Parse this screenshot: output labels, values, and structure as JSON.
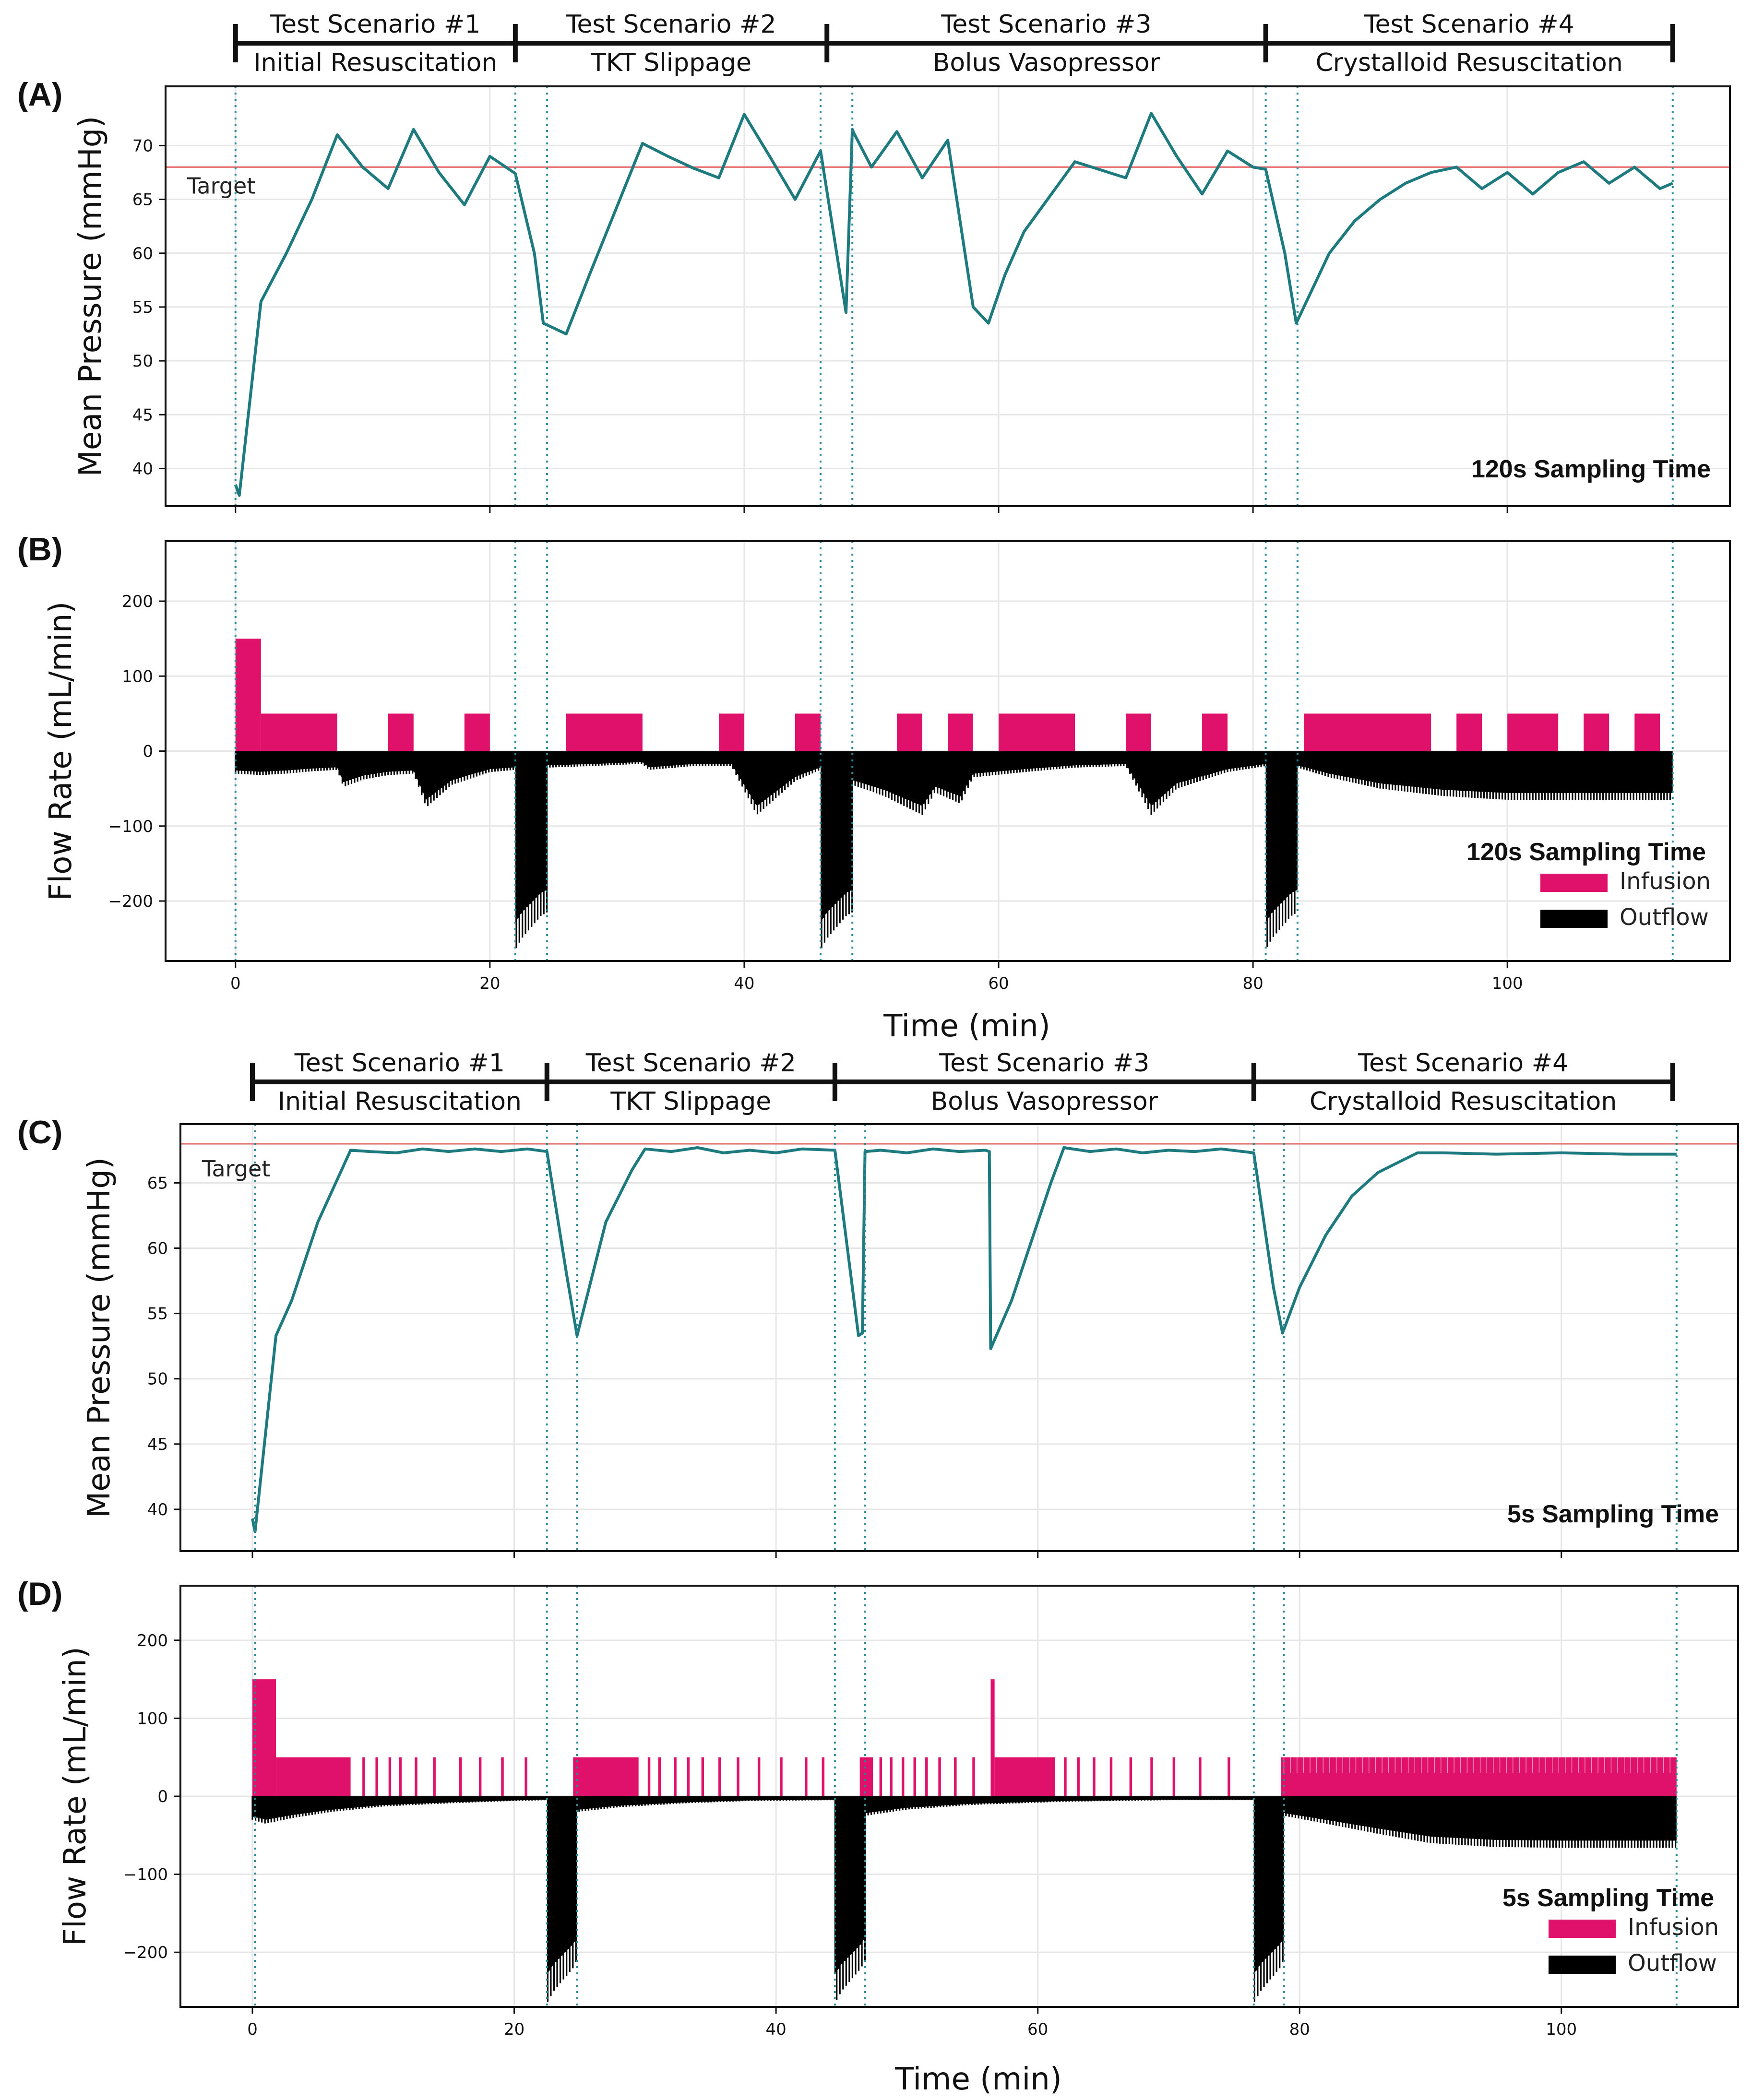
{
  "colors": {
    "pressure": "#1d7a7f",
    "target": "#e8797a",
    "infusion": "#e0116b",
    "outflow": "#000000",
    "event_line": "#2a8a9a",
    "grid": "#e6e6e6"
  },
  "scenario_headers": [
    {
      "bounds": [
        0,
        22,
        46.5,
        81,
        113
      ],
      "scenarios": [
        {
          "title": "Test Scenario #1",
          "subtitle": "Initial Resuscitation"
        },
        {
          "title": "Test Scenario #2",
          "subtitle": "TKT Slippage"
        },
        {
          "title": "Test Scenario #3",
          "subtitle": "Bolus Vasopressor"
        },
        {
          "title": "Test Scenario #4",
          "subtitle": "Crystalloid Resuscitation"
        }
      ]
    },
    {
      "bounds": [
        0,
        22.5,
        44.5,
        76.5,
        108.5
      ],
      "scenarios": [
        {
          "title": "Test Scenario #1",
          "subtitle": "Initial Resuscitation"
        },
        {
          "title": "Test Scenario #2",
          "subtitle": "TKT Slippage"
        },
        {
          "title": "Test Scenario #3",
          "subtitle": "Bolus Vasopressor"
        },
        {
          "title": "Test Scenario #4",
          "subtitle": "Crystalloid Resuscitation"
        }
      ]
    }
  ],
  "chart_data": [
    {
      "panel": "(A)",
      "type": "line",
      "xlabel": "",
      "ylabel": "Mean Pressure (mmHg)",
      "xlim": [
        -5.5,
        117.5
      ],
      "ylim": [
        36.5,
        75.5
      ],
      "yticks": [
        40,
        45,
        50,
        55,
        60,
        65,
        70
      ],
      "xticks": [
        0,
        20,
        40,
        60,
        80,
        100
      ],
      "show_xticklabels": false,
      "grid": true,
      "annotation": "120s Sampling Time",
      "target": {
        "value": 68,
        "label": "Target"
      },
      "event_lines": [
        0,
        22,
        24.5,
        46,
        48.5,
        81,
        83.5,
        113
      ],
      "series": [
        {
          "x": [
            0,
            0.3,
            2,
            4,
            6,
            8,
            10,
            12,
            14,
            16,
            18,
            20,
            22,
            23.5,
            24.2,
            26,
            28,
            32,
            34,
            36,
            38,
            40,
            42,
            44,
            46,
            48,
            48.5,
            48.6,
            50,
            52,
            54,
            56,
            58,
            59.2,
            60.5,
            62,
            66,
            70,
            72,
            74,
            76,
            78,
            80,
            81,
            82.5,
            83.4,
            83.8,
            86,
            88,
            90,
            92,
            94,
            96,
            98,
            100,
            102,
            104,
            106,
            108,
            110,
            112,
            113
          ],
          "values": [
            38.5,
            37.5,
            55.5,
            60,
            65,
            71,
            68,
            66,
            71.5,
            67.5,
            64.5,
            69,
            67.4,
            60,
            53.5,
            52.5,
            58.5,
            70.2,
            69,
            67.9,
            67,
            72.9,
            69,
            65,
            69.5,
            54.5,
            71.5,
            71.2,
            68,
            71.3,
            67,
            70.5,
            55,
            53.5,
            58,
            62,
            68.5,
            67,
            73,
            69,
            65.5,
            69.5,
            68,
            67.8,
            60,
            53.5,
            54.5,
            60,
            63,
            65,
            66.5,
            67.5,
            68,
            66,
            67.5,
            65.5,
            67.5,
            68.5,
            66.5,
            68,
            66,
            66.5
          ]
        }
      ]
    },
    {
      "panel": "(B)",
      "type": "bar",
      "xlabel": "Time (min)",
      "ylabel": "Flow Rate (mL/min)",
      "xlim": [
        -5.5,
        117.5
      ],
      "ylim": [
        -280,
        280
      ],
      "yticks": [
        -200,
        -100,
        0,
        100,
        200
      ],
      "xticks": [
        0,
        20,
        40,
        60,
        80,
        100
      ],
      "show_xticklabels": true,
      "grid": true,
      "annotation": "120s Sampling Time",
      "event_lines": [
        0,
        22,
        24.5,
        46,
        48.5,
        81,
        83.5,
        113
      ],
      "legend": [
        {
          "label": "Infusion",
          "color": "#e0116b"
        },
        {
          "label": "Outflow",
          "color": "#000000"
        }
      ],
      "infusion_segments": [
        {
          "start": 0,
          "end": 2,
          "value": 150
        },
        {
          "start": 2,
          "end": 8,
          "value": 50
        },
        {
          "start": 12,
          "end": 14,
          "value": 50
        },
        {
          "start": 18,
          "end": 20,
          "value": 50
        },
        {
          "start": 26,
          "end": 32,
          "value": 50
        },
        {
          "start": 38,
          "end": 40,
          "value": 50
        },
        {
          "start": 44,
          "end": 46,
          "value": 50
        },
        {
          "start": 52,
          "end": 54,
          "value": 50
        },
        {
          "start": 56,
          "end": 58,
          "value": 50
        },
        {
          "start": 60,
          "end": 66,
          "value": 50
        },
        {
          "start": 70,
          "end": 72,
          "value": 50
        },
        {
          "start": 76,
          "end": 78,
          "value": 50
        },
        {
          "start": 84,
          "end": 94,
          "value": 50
        },
        {
          "start": 96,
          "end": 98,
          "value": 50
        },
        {
          "start": 100,
          "end": 104,
          "value": 50
        },
        {
          "start": 106,
          "end": 108,
          "value": 50
        },
        {
          "start": 110,
          "end": 112,
          "value": 50
        }
      ],
      "outflow_envelope": {
        "x": [
          0,
          2,
          4,
          6,
          8,
          8.5,
          10,
          12,
          14,
          15,
          17,
          20,
          22,
          22.01,
          22.5,
          24,
          24.5,
          24.51,
          28,
          32,
          32.5,
          36,
          39,
          41,
          44,
          46,
          46.01,
          46.5,
          48,
          48.5,
          48.51,
          51,
          54,
          55,
          57,
          58,
          62,
          66,
          70,
          72,
          74,
          78,
          81,
          81.01,
          81.5,
          83,
          83.5,
          83.51,
          86,
          90,
          95,
          100,
          105,
          110,
          113
        ],
        "values": [
          -30,
          -32,
          -30,
          -27,
          -25,
          -48,
          -38,
          -32,
          -30,
          -75,
          -45,
          -28,
          -25,
          -265,
          -250,
          -220,
          -215,
          -22,
          -20,
          -17,
          -25,
          -20,
          -20,
          -85,
          -40,
          -25,
          -265,
          -250,
          -220,
          -215,
          -45,
          -60,
          -85,
          -55,
          -70,
          -35,
          -28,
          -22,
          -20,
          -85,
          -50,
          -28,
          -20,
          -265,
          -250,
          -220,
          -215,
          -22,
          -35,
          -50,
          -60,
          -65,
          -65,
          -65,
          -65
        ]
      }
    },
    {
      "panel": "(C)",
      "type": "line",
      "xlabel": "",
      "ylabel": "Mean Pressure (mmHg)",
      "xlim": [
        -5.5,
        113.5
      ],
      "ylim": [
        36.8,
        69.5
      ],
      "yticks": [
        40,
        45,
        50,
        55,
        60,
        65
      ],
      "xticks": [
        0,
        20,
        40,
        60,
        80,
        100
      ],
      "show_xticklabels": false,
      "grid": true,
      "annotation": "5s Sampling Time",
      "target": {
        "value": 68,
        "label": "Target"
      },
      "event_lines": [
        0.2,
        22.5,
        24.8,
        44.5,
        46.8,
        76.5,
        78.8,
        108.8
      ],
      "series": [
        {
          "x": [
            0,
            0.2,
            1.8,
            3,
            5,
            7.5,
            9,
            11,
            13,
            15,
            17,
            19,
            21,
            22.5,
            24,
            24.8,
            27,
            29,
            30,
            32,
            34,
            36,
            38,
            40,
            42,
            44.5,
            46.3,
            46.6,
            46.8,
            48,
            50,
            52,
            54,
            56,
            56.3,
            56.4,
            58,
            61,
            62,
            64,
            66,
            68,
            70,
            72,
            74,
            76.5,
            78,
            78.7,
            80,
            82,
            84,
            86,
            88,
            89,
            91,
            95,
            100,
            105,
            108.8
          ],
          "values": [
            39.3,
            38.3,
            53.3,
            56,
            62,
            67.5,
            67.4,
            67.3,
            67.6,
            67.4,
            67.6,
            67.4,
            67.6,
            67.4,
            58,
            53.3,
            62,
            66,
            67.6,
            67.4,
            67.7,
            67.3,
            67.5,
            67.3,
            67.6,
            67.5,
            53.3,
            53.5,
            67.4,
            67.5,
            67.3,
            67.6,
            67.4,
            67.5,
            67.4,
            52.3,
            56,
            65,
            67.7,
            67.4,
            67.6,
            67.3,
            67.5,
            67.4,
            67.6,
            67.3,
            57,
            53.5,
            57,
            61,
            64,
            65.8,
            66.8,
            67.3,
            67.3,
            67.2,
            67.3,
            67.2,
            67.2
          ]
        }
      ]
    },
    {
      "panel": "(D)",
      "type": "bar",
      "xlabel": "Time (min)",
      "ylabel": "Flow Rate (mL/min)",
      "xlim": [
        -5.5,
        113.5
      ],
      "ylim": [
        -270,
        270
      ],
      "yticks": [
        -200,
        -100,
        0,
        100,
        200
      ],
      "xticks": [
        0,
        20,
        40,
        60,
        80,
        100
      ],
      "show_xticklabels": true,
      "grid": true,
      "annotation": "5s Sampling Time",
      "event_lines": [
        0.2,
        22.5,
        24.8,
        44.5,
        46.8,
        76.5,
        78.8,
        108.8
      ],
      "legend": [
        {
          "label": "Infusion",
          "color": "#e0116b"
        },
        {
          "label": "Outflow",
          "color": "#000000"
        }
      ],
      "infusion_segments": [
        {
          "start": 0,
          "end": 1.8,
          "value": 150
        },
        {
          "start": 1.8,
          "end": 7.5,
          "value": 50
        },
        {
          "start": 8.4,
          "end": 8.6,
          "value": 50
        },
        {
          "start": 9.4,
          "end": 9.6,
          "value": 50
        },
        {
          "start": 10.4,
          "end": 10.6,
          "value": 50
        },
        {
          "start": 11.2,
          "end": 11.4,
          "value": 50
        },
        {
          "start": 12.4,
          "end": 12.6,
          "value": 50
        },
        {
          "start": 13.8,
          "end": 14,
          "value": 50
        },
        {
          "start": 15.8,
          "end": 16,
          "value": 50
        },
        {
          "start": 17.3,
          "end": 17.5,
          "value": 50
        },
        {
          "start": 19,
          "end": 19.2,
          "value": 50
        },
        {
          "start": 20.8,
          "end": 21,
          "value": 50
        },
        {
          "start": 24.5,
          "end": 29.5,
          "value": 50
        },
        {
          "start": 30.2,
          "end": 30.4,
          "value": 50
        },
        {
          "start": 31,
          "end": 31.2,
          "value": 50
        },
        {
          "start": 32.2,
          "end": 32.4,
          "value": 50
        },
        {
          "start": 33.2,
          "end": 33.4,
          "value": 50
        },
        {
          "start": 34.3,
          "end": 34.5,
          "value": 50
        },
        {
          "start": 35.6,
          "end": 35.8,
          "value": 50
        },
        {
          "start": 37,
          "end": 37.2,
          "value": 50
        },
        {
          "start": 38.6,
          "end": 38.8,
          "value": 50
        },
        {
          "start": 40.3,
          "end": 40.5,
          "value": 50
        },
        {
          "start": 42.2,
          "end": 42.4,
          "value": 50
        },
        {
          "start": 43.5,
          "end": 43.7,
          "value": 50
        },
        {
          "start": 46.4,
          "end": 47.4,
          "value": 50
        },
        {
          "start": 47.9,
          "end": 48.1,
          "value": 50
        },
        {
          "start": 48.7,
          "end": 48.9,
          "value": 50
        },
        {
          "start": 49.6,
          "end": 49.8,
          "value": 50
        },
        {
          "start": 50.5,
          "end": 50.7,
          "value": 50
        },
        {
          "start": 51.4,
          "end": 51.6,
          "value": 50
        },
        {
          "start": 52.4,
          "end": 52.6,
          "value": 50
        },
        {
          "start": 53.6,
          "end": 53.8,
          "value": 50
        },
        {
          "start": 55,
          "end": 55.2,
          "value": 50
        },
        {
          "start": 56.4,
          "end": 56.7,
          "value": 150
        },
        {
          "start": 56.7,
          "end": 61.3,
          "value": 50
        },
        {
          "start": 62,
          "end": 62.2,
          "value": 50
        },
        {
          "start": 63,
          "end": 63.2,
          "value": 50
        },
        {
          "start": 64.2,
          "end": 64.4,
          "value": 50
        },
        {
          "start": 65.5,
          "end": 65.7,
          "value": 50
        },
        {
          "start": 67,
          "end": 67.2,
          "value": 50
        },
        {
          "start": 68.6,
          "end": 68.8,
          "value": 50
        },
        {
          "start": 70.3,
          "end": 70.5,
          "value": 50
        },
        {
          "start": 72.3,
          "end": 72.5,
          "value": 50
        },
        {
          "start": 74.5,
          "end": 74.7,
          "value": 50
        },
        {
          "start": 78.6,
          "end": 108.8,
          "value": 50
        }
      ],
      "outflow_envelope": {
        "x": [
          0,
          1,
          3,
          6,
          10,
          15,
          20,
          22.5,
          22.51,
          23,
          24.5,
          24.8,
          24.81,
          28,
          33,
          38,
          44.5,
          44.51,
          45,
          46.5,
          46.8,
          46.81,
          50,
          55,
          62,
          70,
          76.5,
          76.51,
          77,
          78.5,
          78.8,
          78.81,
          82,
          86,
          90,
          95,
          100,
          105,
          108.8
        ],
        "values": [
          -30,
          -35,
          -28,
          -20,
          -13,
          -9,
          -6,
          -5,
          -265,
          -250,
          -220,
          -210,
          -20,
          -14,
          -9,
          -6,
          -5,
          -265,
          -250,
          -220,
          -210,
          -25,
          -17,
          -11,
          -7,
          -5,
          -5,
          -265,
          -250,
          -220,
          -210,
          -25,
          -35,
          -48,
          -60,
          -65,
          -66,
          -66,
          -66
        ]
      }
    }
  ]
}
